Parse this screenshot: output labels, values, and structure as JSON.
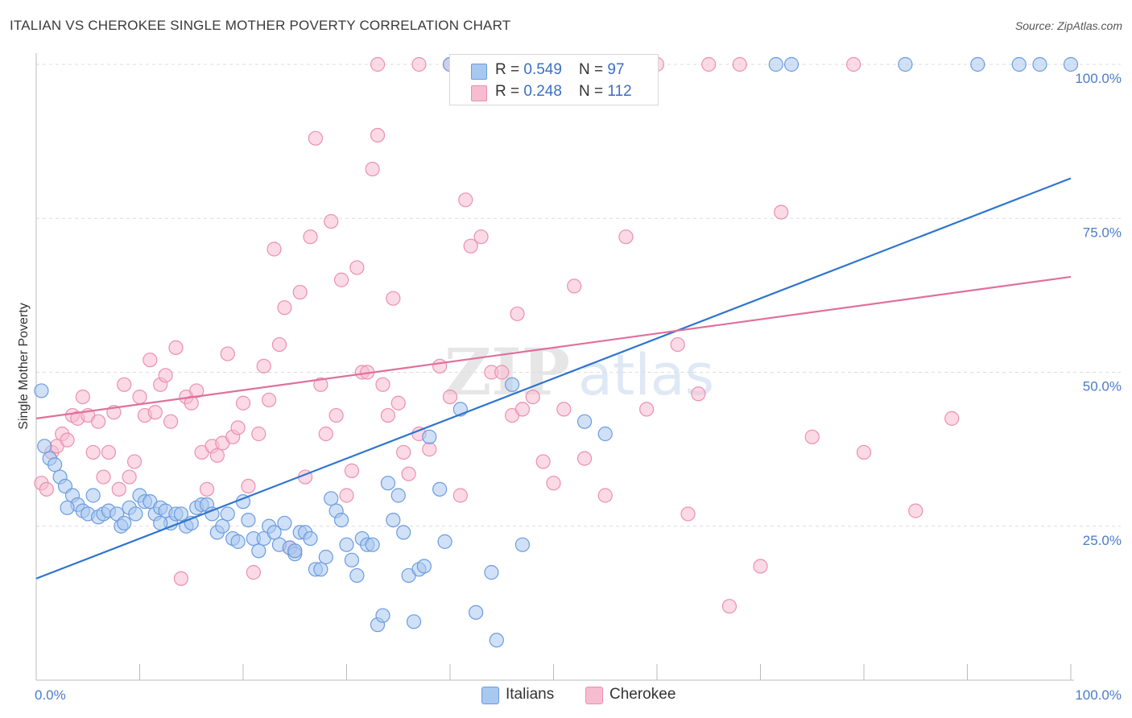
{
  "title": "ITALIAN VS CHEROKEE SINGLE MOTHER POVERTY CORRELATION CHART",
  "source": "Source: ZipAtlas.com",
  "colors": {
    "italians_fill": "#a9c8f0",
    "italians_stroke": "#6b9be0",
    "italians_line": "#2f74d0",
    "cherokee_fill": "#f7bcd0",
    "cherokee_stroke": "#ec8fae",
    "cherokee_line": "#e0709a",
    "tick_label": "#4a7cc9",
    "grid": "#dcdcdc"
  },
  "legend": {
    "rows": [
      {
        "r_label": "R = ",
        "r_value": "0.549",
        "n_label": "N = ",
        "n_value": "97"
      },
      {
        "r_label": "R = ",
        "r_value": "0.248",
        "n_label": "N = ",
        "n_value": "112"
      }
    ]
  },
  "bottom_legend": {
    "italians": "Italians",
    "cherokee": "Cherokee"
  },
  "chart_data": {
    "type": "scatter",
    "title": "ITALIAN VS CHEROKEE SINGLE MOTHER POVERTY CORRELATION CHART",
    "xlabel": "",
    "ylabel": "Single Mother Poverty",
    "xlim": [
      0,
      100
    ],
    "ylim": [
      0,
      100
    ],
    "x_tick_labels": [
      "0.0%",
      "100.0%"
    ],
    "y_ticks": [
      25,
      50,
      75,
      100
    ],
    "y_tick_labels": [
      "25.0%",
      "50.0%",
      "75.0%",
      "100.0%"
    ],
    "grid": true,
    "legend_position": "top-center",
    "series": [
      {
        "name": "Italians",
        "r": 0.549,
        "n": 97,
        "trend": {
          "x": [
            0,
            100
          ],
          "y": [
            16.5,
            81.5
          ]
        },
        "points": [
          [
            0.5,
            47
          ],
          [
            0.8,
            38
          ],
          [
            1.3,
            36
          ],
          [
            1.8,
            35
          ],
          [
            2.3,
            33
          ],
          [
            2.8,
            31.5
          ],
          [
            3.5,
            30
          ],
          [
            4,
            28.5
          ],
          [
            4.5,
            27.5
          ],
          [
            5,
            27
          ],
          [
            5.5,
            30
          ],
          [
            6,
            26.5
          ],
          [
            6.5,
            27
          ],
          [
            7,
            27.5
          ],
          [
            7.8,
            27
          ],
          [
            8.2,
            25
          ],
          [
            8.5,
            25.5
          ],
          [
            9,
            28
          ],
          [
            9.6,
            27
          ],
          [
            10,
            30
          ],
          [
            10.5,
            29
          ],
          [
            11,
            29
          ],
          [
            11.5,
            27
          ],
          [
            12,
            28
          ],
          [
            12.5,
            27.5
          ],
          [
            13,
            25.5
          ],
          [
            13.5,
            27
          ],
          [
            14,
            27
          ],
          [
            14.5,
            25
          ],
          [
            15,
            25.5
          ],
          [
            15.5,
            28
          ],
          [
            16,
            28.5
          ],
          [
            16.5,
            28.5
          ],
          [
            17,
            27
          ],
          [
            17.5,
            24
          ],
          [
            18,
            25
          ],
          [
            18.5,
            27
          ],
          [
            19,
            23
          ],
          [
            19.5,
            22.5
          ],
          [
            20,
            29
          ],
          [
            20.5,
            26
          ],
          [
            21,
            23
          ],
          [
            21.5,
            21
          ],
          [
            22,
            23
          ],
          [
            22.5,
            25
          ],
          [
            23,
            24
          ],
          [
            23.5,
            22
          ],
          [
            24,
            25.5
          ],
          [
            24.5,
            21.5
          ],
          [
            25,
            20.5
          ],
          [
            25.5,
            24
          ],
          [
            26,
            24
          ],
          [
            26.5,
            23
          ],
          [
            27,
            18
          ],
          [
            27.5,
            18
          ],
          [
            28,
            20
          ],
          [
            28.5,
            29.5
          ],
          [
            29,
            27.5
          ],
          [
            29.5,
            26
          ],
          [
            30,
            22
          ],
          [
            30.5,
            19.5
          ],
          [
            31,
            17
          ],
          [
            31.5,
            23
          ],
          [
            32,
            22
          ],
          [
            32.5,
            22
          ],
          [
            33,
            9
          ],
          [
            33.5,
            10.5
          ],
          [
            34,
            32
          ],
          [
            34.5,
            26
          ],
          [
            35,
            30
          ],
          [
            35.5,
            24
          ],
          [
            36,
            17
          ],
          [
            36.5,
            9.5
          ],
          [
            37,
            18
          ],
          [
            37.5,
            18.5
          ],
          [
            38,
            39.5
          ],
          [
            39,
            31
          ],
          [
            39.5,
            22.5
          ],
          [
            40,
            100
          ],
          [
            41,
            44
          ],
          [
            42.5,
            11
          ],
          [
            44,
            17.5
          ],
          [
            44.5,
            6.5
          ],
          [
            46,
            48
          ],
          [
            47,
            22
          ],
          [
            53,
            42
          ],
          [
            55,
            40
          ],
          [
            71.5,
            100
          ],
          [
            73,
            100
          ],
          [
            84,
            100
          ],
          [
            91,
            100
          ],
          [
            95,
            100
          ],
          [
            97,
            100
          ],
          [
            100,
            100
          ],
          [
            3,
            28
          ],
          [
            12,
            25.5
          ],
          [
            25,
            21
          ]
        ]
      },
      {
        "name": "Cherokee",
        "r": 0.248,
        "n": 112,
        "trend": {
          "x": [
            0,
            100
          ],
          "y": [
            42.5,
            65.5
          ]
        },
        "points": [
          [
            0.5,
            32
          ],
          [
            1,
            31
          ],
          [
            1.5,
            37
          ],
          [
            2,
            38
          ],
          [
            2.5,
            40
          ],
          [
            3,
            39
          ],
          [
            3.5,
            43
          ],
          [
            4,
            42.5
          ],
          [
            4.5,
            46
          ],
          [
            5,
            43
          ],
          [
            5.5,
            37
          ],
          [
            6,
            42
          ],
          [
            6.5,
            33
          ],
          [
            7,
            37
          ],
          [
            7.5,
            43.5
          ],
          [
            8,
            31
          ],
          [
            8.5,
            48
          ],
          [
            9,
            33
          ],
          [
            9.5,
            35.5
          ],
          [
            10,
            46
          ],
          [
            10.5,
            43
          ],
          [
            11,
            52
          ],
          [
            11.5,
            43.5
          ],
          [
            12,
            48
          ],
          [
            12.5,
            49.5
          ],
          [
            13,
            42
          ],
          [
            13.5,
            54
          ],
          [
            14,
            16.5
          ],
          [
            14.5,
            46
          ],
          [
            15,
            45
          ],
          [
            15.5,
            47
          ],
          [
            16,
            37
          ],
          [
            16.5,
            31
          ],
          [
            17,
            38
          ],
          [
            17.5,
            36.5
          ],
          [
            18,
            38.5
          ],
          [
            18.5,
            53
          ],
          [
            19,
            39.5
          ],
          [
            19.5,
            41
          ],
          [
            20,
            45
          ],
          [
            20.5,
            31.5
          ],
          [
            21,
            17.5
          ],
          [
            21.5,
            40
          ],
          [
            22,
            51
          ],
          [
            22.5,
            45.5
          ],
          [
            23,
            70
          ],
          [
            23.5,
            54.5
          ],
          [
            24,
            60.5
          ],
          [
            24.5,
            21.5
          ],
          [
            25,
            21
          ],
          [
            25.5,
            63
          ],
          [
            26,
            33
          ],
          [
            26.5,
            72
          ],
          [
            27,
            88
          ],
          [
            27.5,
            48
          ],
          [
            28,
            40
          ],
          [
            28.5,
            74.5
          ],
          [
            29,
            43
          ],
          [
            29.5,
            65
          ],
          [
            30,
            30
          ],
          [
            30.5,
            34
          ],
          [
            31,
            67
          ],
          [
            31.5,
            50
          ],
          [
            32,
            50
          ],
          [
            32.5,
            83
          ],
          [
            33,
            88.5
          ],
          [
            33.5,
            48
          ],
          [
            34,
            43
          ],
          [
            34.5,
            62
          ],
          [
            35,
            45
          ],
          [
            35.5,
            37
          ],
          [
            36,
            33.5
          ],
          [
            37,
            40
          ],
          [
            38,
            37.5
          ],
          [
            39,
            51
          ],
          [
            40,
            46
          ],
          [
            41,
            30
          ],
          [
            41.5,
            78
          ],
          [
            42,
            70.5
          ],
          [
            43,
            72
          ],
          [
            44,
            50
          ],
          [
            45,
            50
          ],
          [
            46,
            43
          ],
          [
            46.5,
            59.5
          ],
          [
            47,
            44
          ],
          [
            48,
            46
          ],
          [
            49,
            35.5
          ],
          [
            50,
            32
          ],
          [
            51,
            44
          ],
          [
            52,
            64
          ],
          [
            53,
            36
          ],
          [
            55,
            30
          ],
          [
            57,
            72
          ],
          [
            59,
            44
          ],
          [
            62,
            54.5
          ],
          [
            63,
            27
          ],
          [
            64,
            46.5
          ],
          [
            67,
            12
          ],
          [
            68,
            100
          ],
          [
            70,
            18.5
          ],
          [
            72,
            76
          ],
          [
            75,
            39.5
          ],
          [
            79,
            100
          ],
          [
            80,
            37
          ],
          [
            85,
            27.5
          ],
          [
            88.5,
            42.5
          ],
          [
            33,
            100
          ],
          [
            37,
            100
          ],
          [
            40,
            100
          ],
          [
            46,
            100
          ],
          [
            51,
            100
          ],
          [
            60,
            100
          ],
          [
            65,
            100
          ]
        ]
      }
    ]
  }
}
